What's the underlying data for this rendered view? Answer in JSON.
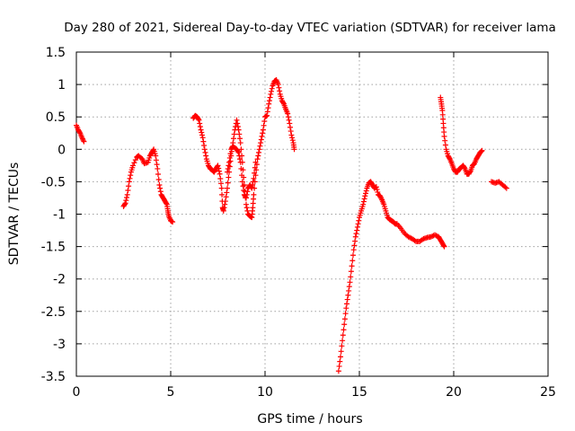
{
  "chart_data": {
    "type": "scatter",
    "title": "Day 280 of 2021, Sidereal Day-to-day VTEC variation (SDTVAR) for receiver lama",
    "xlabel": "GPS time / hours",
    "ylabel": "SDTVAR / TECUs",
    "xlim": [
      0,
      25
    ],
    "ylim": [
      -3.5,
      1.5
    ],
    "xticks": [
      0,
      5,
      10,
      15,
      20,
      25
    ],
    "xtick_labels": [
      "0",
      "5",
      "10",
      "15",
      "20",
      "25"
    ],
    "yticks": [
      1.5,
      1,
      0.5,
      0,
      -0.5,
      -1,
      -1.5,
      -2,
      -2.5,
      -3,
      -3.5
    ],
    "ytick_labels": [
      "1.5",
      "1",
      "0.5",
      "0",
      "-0.5",
      "-1",
      "-1.5",
      "-2",
      "-2.5",
      "-3",
      "-3.5"
    ],
    "grid": true,
    "marker": "+",
    "series": [
      {
        "name": "SDTVAR",
        "color": "#ff0000",
        "segments": [
          [
            [
              0.0,
              0.37
            ],
            [
              0.1,
              0.3
            ],
            [
              0.2,
              0.25
            ],
            [
              0.3,
              0.18
            ],
            [
              0.4,
              0.12
            ]
          ],
          [
            [
              2.5,
              -0.88
            ],
            [
              2.6,
              -0.83
            ],
            [
              2.7,
              -0.7
            ],
            [
              2.8,
              -0.5
            ],
            [
              2.9,
              -0.35
            ],
            [
              3.0,
              -0.25
            ],
            [
              3.2,
              -0.12
            ],
            [
              3.3,
              -0.1
            ],
            [
              3.5,
              -0.15
            ],
            [
              3.6,
              -0.22
            ],
            [
              3.8,
              -0.2
            ],
            [
              3.9,
              -0.1
            ],
            [
              4.0,
              -0.05
            ],
            [
              4.1,
              0.0
            ],
            [
              4.2,
              -0.1
            ],
            [
              4.3,
              -0.3
            ],
            [
              4.4,
              -0.55
            ],
            [
              4.5,
              -0.7
            ],
            [
              4.6,
              -0.75
            ],
            [
              4.7,
              -0.8
            ],
            [
              4.8,
              -0.85
            ],
            [
              4.85,
              -0.95
            ],
            [
              4.9,
              -1.03
            ],
            [
              5.0,
              -1.1
            ],
            [
              5.1,
              -1.12
            ]
          ],
          [
            [
              6.2,
              0.48
            ],
            [
              6.3,
              0.52
            ],
            [
              6.4,
              0.5
            ],
            [
              6.5,
              0.45
            ],
            [
              6.6,
              0.3
            ],
            [
              6.7,
              0.18
            ],
            [
              6.8,
              0.0
            ],
            [
              6.9,
              -0.15
            ],
            [
              7.0,
              -0.25
            ],
            [
              7.1,
              -0.3
            ],
            [
              7.2,
              -0.32
            ],
            [
              7.3,
              -0.35
            ],
            [
              7.4,
              -0.3
            ],
            [
              7.5,
              -0.25
            ],
            [
              7.6,
              -0.38
            ],
            [
              7.7,
              -0.6
            ],
            [
              7.75,
              -0.9
            ],
            [
              7.8,
              -0.95
            ],
            [
              7.9,
              -0.8
            ],
            [
              8.0,
              -0.6
            ],
            [
              8.1,
              -0.35
            ],
            [
              8.2,
              -0.1
            ],
            [
              8.3,
              0.1
            ],
            [
              8.4,
              0.3
            ],
            [
              8.5,
              0.45
            ],
            [
              8.6,
              0.3
            ],
            [
              8.7,
              0.1
            ],
            [
              8.8,
              -0.2
            ],
            [
              8.9,
              -0.55
            ],
            [
              9.0,
              -0.85
            ],
            [
              9.1,
              -1.0
            ],
            [
              9.2,
              -1.03
            ],
            [
              9.3,
              -1.05
            ],
            [
              9.35,
              -0.9
            ],
            [
              9.4,
              -0.7
            ],
            [
              9.5,
              -0.4
            ],
            [
              9.6,
              -0.15
            ],
            [
              9.7,
              0.0
            ],
            [
              9.8,
              0.15
            ],
            [
              9.9,
              0.3
            ],
            [
              10.0,
              0.5
            ],
            [
              10.1,
              0.52
            ],
            [
              10.2,
              0.7
            ],
            [
              10.3,
              0.85
            ],
            [
              10.4,
              0.98
            ],
            [
              10.5,
              1.05
            ],
            [
              10.6,
              1.07
            ],
            [
              10.7,
              1.0
            ],
            [
              10.8,
              0.85
            ],
            [
              10.9,
              0.75
            ],
            [
              11.0,
              0.7
            ],
            [
              11.1,
              0.62
            ],
            [
              11.2,
              0.55
            ],
            [
              11.3,
              0.4
            ],
            [
              11.4,
              0.22
            ],
            [
              11.5,
              0.1
            ],
            [
              11.55,
              0.0
            ]
          ],
          [
            [
              8.0,
              -0.35
            ],
            [
              8.1,
              -0.2
            ],
            [
              8.2,
              0.0
            ],
            [
              8.3,
              0.05
            ],
            [
              8.5,
              0.0
            ],
            [
              8.6,
              -0.05
            ],
            [
              8.7,
              -0.2
            ],
            [
              8.8,
              -0.5
            ],
            [
              8.9,
              -0.7
            ],
            [
              9.0,
              -0.75
            ],
            [
              9.1,
              -0.6
            ],
            [
              9.2,
              -0.55
            ],
            [
              9.3,
              -0.6
            ],
            [
              9.4,
              -0.45
            ],
            [
              9.5,
              -0.2
            ]
          ],
          [
            [
              13.9,
              -3.42
            ],
            [
              14.0,
              -3.2
            ],
            [
              14.1,
              -2.95
            ],
            [
              14.2,
              -2.7
            ],
            [
              14.3,
              -2.45
            ],
            [
              14.4,
              -2.25
            ],
            [
              14.5,
              -2.05
            ],
            [
              14.6,
              -1.8
            ],
            [
              14.7,
              -1.55
            ],
            [
              14.8,
              -1.35
            ],
            [
              14.9,
              -1.2
            ],
            [
              15.0,
              -1.05
            ],
            [
              15.1,
              -0.95
            ],
            [
              15.2,
              -0.85
            ],
            [
              15.3,
              -0.72
            ],
            [
              15.4,
              -0.6
            ],
            [
              15.5,
              -0.52
            ],
            [
              15.6,
              -0.5
            ],
            [
              15.7,
              -0.55
            ],
            [
              15.8,
              -0.6
            ],
            [
              15.9,
              -0.58
            ],
            [
              16.0,
              -0.7
            ],
            [
              16.1,
              -0.72
            ],
            [
              16.2,
              -0.78
            ],
            [
              16.3,
              -0.85
            ],
            [
              16.4,
              -0.95
            ],
            [
              16.5,
              -1.05
            ],
            [
              16.6,
              -1.08
            ],
            [
              16.7,
              -1.1
            ],
            [
              16.8,
              -1.12
            ],
            [
              16.9,
              -1.15
            ],
            [
              17.0,
              -1.15
            ],
            [
              17.2,
              -1.22
            ],
            [
              17.4,
              -1.3
            ],
            [
              17.6,
              -1.35
            ],
            [
              17.8,
              -1.38
            ],
            [
              18.0,
              -1.42
            ],
            [
              18.2,
              -1.42
            ],
            [
              18.4,
              -1.38
            ],
            [
              18.6,
              -1.36
            ],
            [
              18.8,
              -1.35
            ],
            [
              19.0,
              -1.32
            ],
            [
              19.2,
              -1.35
            ],
            [
              19.3,
              -1.4
            ],
            [
              19.4,
              -1.45
            ],
            [
              19.5,
              -1.5
            ]
          ],
          [
            [
              19.3,
              0.8
            ],
            [
              19.35,
              0.7
            ],
            [
              19.4,
              0.6
            ],
            [
              19.45,
              0.4
            ],
            [
              19.5,
              0.2
            ],
            [
              19.6,
              0.0
            ],
            [
              19.7,
              -0.1
            ],
            [
              19.8,
              -0.15
            ],
            [
              19.9,
              -0.22
            ],
            [
              20.0,
              -0.3
            ],
            [
              20.1,
              -0.35
            ],
            [
              20.2,
              -0.35
            ],
            [
              20.3,
              -0.3
            ],
            [
              20.4,
              -0.28
            ],
            [
              20.5,
              -0.25
            ],
            [
              20.6,
              -0.3
            ],
            [
              20.7,
              -0.38
            ],
            [
              20.8,
              -0.38
            ],
            [
              20.9,
              -0.33
            ],
            [
              21.0,
              -0.25
            ],
            [
              21.1,
              -0.22
            ],
            [
              21.2,
              -0.15
            ],
            [
              21.3,
              -0.1
            ],
            [
              21.4,
              -0.05
            ],
            [
              21.5,
              -0.02
            ]
          ],
          [
            [
              22.0,
              -0.5
            ],
            [
              22.2,
              -0.52
            ],
            [
              22.4,
              -0.5
            ],
            [
              22.6,
              -0.55
            ],
            [
              22.8,
              -0.6
            ]
          ]
        ]
      }
    ]
  }
}
